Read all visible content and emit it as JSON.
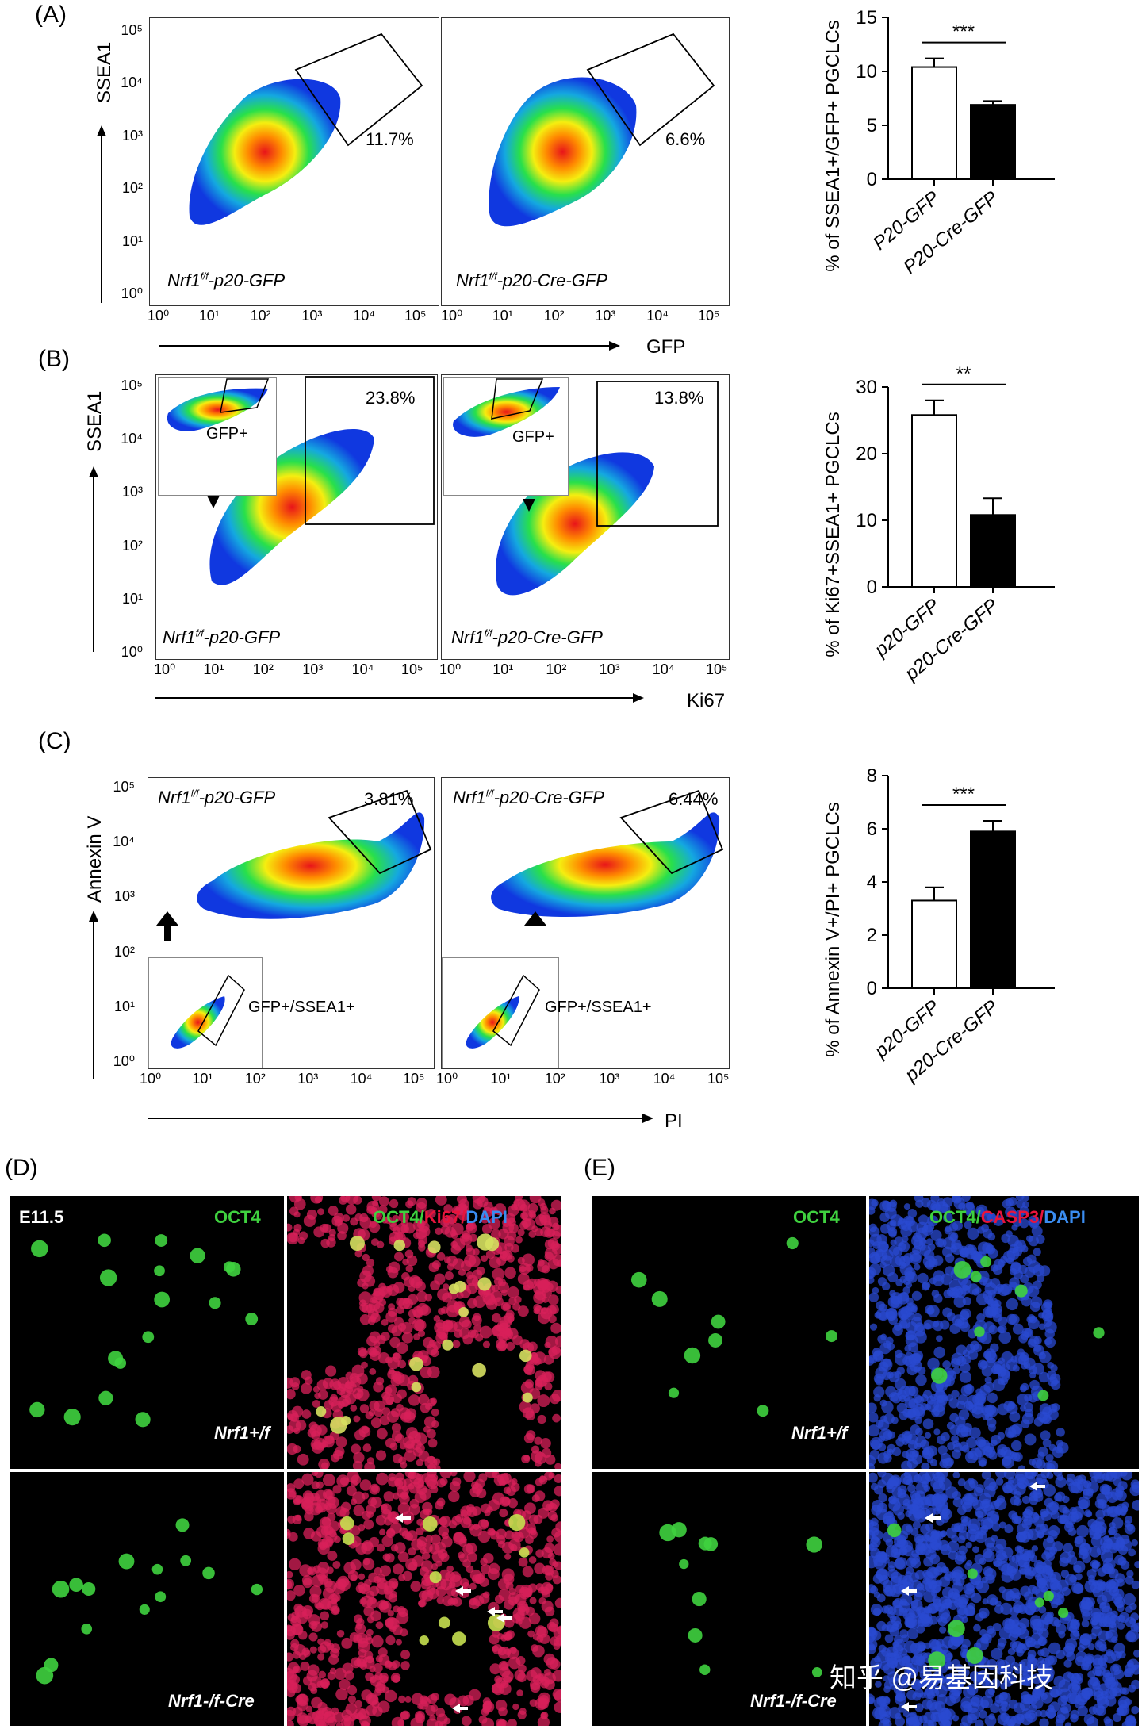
{
  "panels": {
    "A": {
      "letter": "(A)",
      "y_axis": "SSEA1",
      "x_axis": "GFP",
      "plots": [
        {
          "label_prefix": "Nrf1",
          "label_sup": "f/f",
          "label_suffix": "-p20-GFP",
          "percent": "11.7%"
        },
        {
          "label_prefix": "Nrf1",
          "label_sup": "f/f",
          "label_suffix": "-p20-Cre-GFP",
          "percent": "6.6%"
        }
      ]
    },
    "B": {
      "letter": "(B)",
      "y_axis": "SSEA1",
      "x_axis": "Ki67",
      "inset_label": "GFP+",
      "plots": [
        {
          "label_prefix": "Nrf1",
          "label_sup": "f/f",
          "label_suffix": "-p20-GFP",
          "percent": "23.8%"
        },
        {
          "label_prefix": "Nrf1",
          "label_sup": "f/f",
          "label_suffix": "-p20-Cre-GFP",
          "percent": "13.8%"
        }
      ]
    },
    "C": {
      "letter": "(C)",
      "y_axis": "Annexin V",
      "x_axis": "PI",
      "inset_label": "GFP+/SSEA1+",
      "plots": [
        {
          "label_prefix": "Nrf1",
          "label_sup": "f/f",
          "label_suffix": "-p20-GFP",
          "percent": "3.81%"
        },
        {
          "label_prefix": "Nrf1",
          "label_sup": "f/f",
          "label_suffix": "-p20-Cre-GFP",
          "percent": "6.44%"
        }
      ]
    },
    "D": {
      "letter": "(D)",
      "stage": "E11.5",
      "top_geno": "Nrf1+/f",
      "bottom_geno": "Nrf1-/f-Cre",
      "stain_left": "OCT4",
      "stain_right_parts": [
        "OCT4/",
        "Ki67/",
        "DAPI"
      ]
    },
    "E": {
      "letter": "(E)",
      "top_geno": "Nrf1+/f",
      "bottom_geno": "Nrf1-/f-Cre",
      "stain_left": "OCT4",
      "stain_right_parts": [
        "OCT4/",
        "CASP3/",
        "DAPI"
      ]
    }
  },
  "log_ticks": [
    "10⁰",
    "10¹",
    "10²",
    "10³",
    "10⁴",
    "10⁵"
  ],
  "watermark": "知乎 @易基因科技",
  "colors": {
    "ctrl_bar": "#ffffff",
    "ko_bar": "#000000",
    "oct4": "#3fd13f",
    "ki67": "#e8143c",
    "dapi": "#3a66d8",
    "casp3": "#e8143c"
  },
  "chart_data": [
    {
      "type": "bar",
      "categories": [
        "P20-GFP",
        "P20-Cre-GFP"
      ],
      "values": [
        10.4,
        6.9
      ],
      "errors": [
        0.8,
        0.35
      ],
      "ylabel": "% of SSEA1+/GFP+ PGCLCs",
      "ylim": [
        0,
        15
      ],
      "yticks": [
        0,
        5,
        10,
        15
      ],
      "significance": "***"
    },
    {
      "type": "bar",
      "categories": [
        "p20-GFP",
        "p20-Cre-GFP"
      ],
      "values": [
        25.8,
        10.8
      ],
      "errors": [
        2.2,
        2.5
      ],
      "ylabel": "% of Ki67+SSEA1+ PGCLCs",
      "ylim": [
        0,
        30
      ],
      "yticks": [
        0,
        10,
        20,
        30
      ],
      "significance": "**"
    },
    {
      "type": "bar",
      "categories": [
        "p20-GFP",
        "p20-Cre-GFP"
      ],
      "values": [
        3.3,
        5.9
      ],
      "errors": [
        0.5,
        0.4
      ],
      "ylabel": "% of Annexin V+/PI+ PGCLCs",
      "ylim": [
        0,
        8
      ],
      "yticks": [
        0,
        2,
        4,
        6,
        8
      ],
      "significance": "***"
    }
  ]
}
